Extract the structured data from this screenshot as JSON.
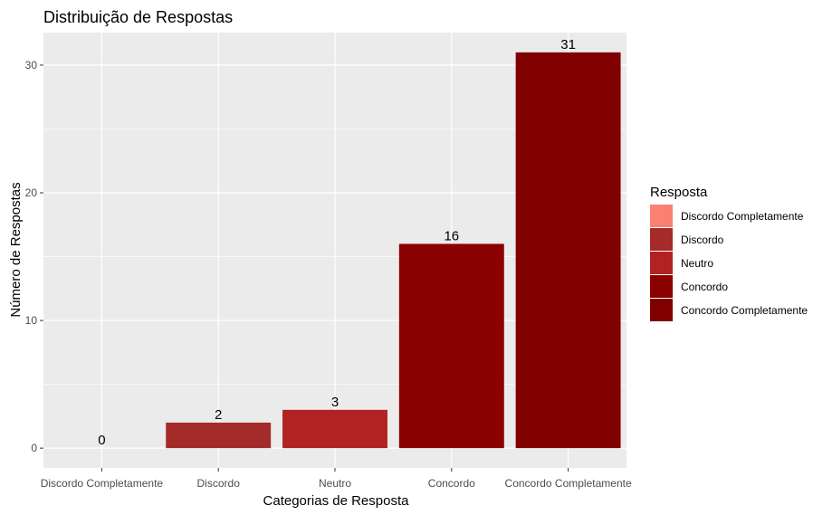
{
  "chart_data": {
    "type": "bar",
    "title": "Distribuição de Respostas",
    "xlabel": "Categorias de Resposta",
    "ylabel": "Número de Respostas",
    "categories": [
      "Discordo Completamente",
      "Discordo",
      "Neutro",
      "Concordo",
      "Concordo Completamente"
    ],
    "values": [
      0,
      2,
      3,
      16,
      31
    ],
    "data_labels": [
      "0",
      "2",
      "3",
      "16",
      "31"
    ],
    "colors": [
      "#FA8072",
      "#A52A2A",
      "#B22222",
      "#8B0000",
      "#800000"
    ],
    "ylim": [
      -1.55,
      32.55
    ],
    "yticks": [
      0,
      10,
      20,
      30
    ],
    "ytick_labels": [
      "0",
      "10",
      "20",
      "30"
    ],
    "grid": true,
    "legend": {
      "title": "Resposta",
      "position": "right",
      "entries": [
        "Discordo Completamente",
        "Discordo",
        "Neutro",
        "Concordo",
        "Concordo Completamente"
      ]
    },
    "panel_background": "#EBEBEB"
  }
}
